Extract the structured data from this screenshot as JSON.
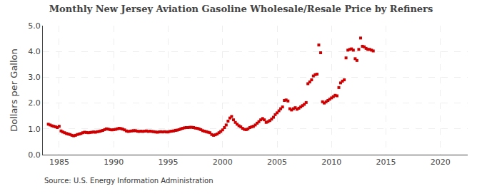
{
  "chart_data": {
    "type": "scatter",
    "title": "Monthly New Jersey Aviation Gasoline Wholesale/Resale Price by Refiners",
    "ylabel": "Dollars per Gallon",
    "annotations": [
      {
        "text": "Source: U.S. Energy Information Administration"
      }
    ],
    "color": "#cc0000",
    "marker": "square",
    "grid": true,
    "xlim": [
      1983.5,
      2022.5
    ],
    "ylim": [
      0.0,
      5.0
    ],
    "xticks": [
      1985,
      1990,
      1995,
      2000,
      2005,
      2010,
      2015,
      2020
    ],
    "yticks": [
      {
        "value": 0.0,
        "label": "0.0"
      },
      {
        "value": 1.0,
        "label": "1.0"
      },
      {
        "value": 2.0,
        "label": "2.0"
      },
      {
        "value": 3.0,
        "label": "3.0"
      },
      {
        "value": 4.0,
        "label": "4.0"
      },
      {
        "value": 5.0,
        "label": "5.0"
      }
    ],
    "x": [
      1984.0,
      1984.17,
      1984.33,
      1984.5,
      1984.67,
      1984.83,
      1985.0,
      1985.17,
      1985.33,
      1985.5,
      1985.67,
      1985.83,
      1986.0,
      1986.17,
      1986.33,
      1986.5,
      1986.67,
      1986.83,
      1987.0,
      1987.17,
      1987.33,
      1987.5,
      1987.67,
      1987.83,
      1988.0,
      1988.17,
      1988.33,
      1988.5,
      1988.67,
      1988.83,
      1989.0,
      1989.17,
      1989.33,
      1989.5,
      1989.67,
      1989.83,
      1990.0,
      1990.17,
      1990.33,
      1990.5,
      1990.67,
      1990.83,
      1991.0,
      1991.17,
      1991.33,
      1991.5,
      1991.67,
      1991.83,
      1992.0,
      1992.17,
      1992.33,
      1992.5,
      1992.67,
      1992.83,
      1993.0,
      1993.17,
      1993.33,
      1993.5,
      1993.67,
      1993.83,
      1994.0,
      1994.17,
      1994.33,
      1994.5,
      1994.67,
      1994.83,
      1995.0,
      1995.17,
      1995.33,
      1995.5,
      1995.67,
      1995.83,
      1996.0,
      1996.17,
      1996.33,
      1996.5,
      1996.67,
      1996.83,
      1997.0,
      1997.17,
      1997.33,
      1997.5,
      1997.67,
      1997.83,
      1998.0,
      1998.17,
      1998.33,
      1998.5,
      1998.67,
      1998.83,
      1999.0,
      1999.17,
      1999.33,
      1999.5,
      1999.67,
      1999.83,
      2000.0,
      2000.17,
      2000.33,
      2000.5,
      2000.67,
      2000.83,
      2001.0,
      2001.17,
      2001.33,
      2001.5,
      2001.67,
      2001.83,
      2002.0,
      2002.17,
      2002.33,
      2002.5,
      2002.67,
      2002.83,
      2003.0,
      2003.17,
      2003.33,
      2003.5,
      2003.67,
      2003.83,
      2004.0,
      2004.17,
      2004.33,
      2004.5,
      2004.67,
      2004.83,
      2005.0,
      2005.17,
      2005.33,
      2005.5,
      2005.67,
      2005.83,
      2006.0,
      2006.17,
      2006.33,
      2006.5,
      2006.67,
      2006.83,
      2007.0,
      2007.17,
      2007.33,
      2007.5,
      2007.67,
      2007.83,
      2008.0,
      2008.17,
      2008.33,
      2008.5,
      2008.67,
      2008.83,
      2009.0,
      2009.17,
      2009.33,
      2009.5,
      2009.67,
      2009.83,
      2010.0,
      2010.17,
      2010.33,
      2010.5,
      2010.67,
      2010.83,
      2011.0,
      2011.17,
      2011.33,
      2011.5,
      2011.67,
      2011.83,
      2012.0,
      2012.17,
      2012.33,
      2012.5,
      2012.67,
      2012.83,
      2013.0,
      2013.17,
      2013.33,
      2013.5,
      2013.67,
      2013.83
    ],
    "values": [
      1.18,
      1.15,
      1.12,
      1.1,
      1.08,
      1.05,
      1.1,
      0.92,
      0.88,
      0.85,
      0.82,
      0.8,
      0.78,
      0.75,
      0.73,
      0.75,
      0.78,
      0.8,
      0.82,
      0.85,
      0.87,
      0.86,
      0.85,
      0.86,
      0.87,
      0.88,
      0.87,
      0.89,
      0.9,
      0.92,
      0.94,
      0.97,
      1.0,
      0.99,
      0.97,
      0.96,
      0.97,
      0.98,
      1.0,
      1.02,
      1.01,
      0.99,
      0.96,
      0.92,
      0.9,
      0.91,
      0.92,
      0.93,
      0.93,
      0.91,
      0.9,
      0.91,
      0.9,
      0.91,
      0.92,
      0.9,
      0.91,
      0.9,
      0.89,
      0.88,
      0.87,
      0.88,
      0.89,
      0.88,
      0.89,
      0.88,
      0.88,
      0.9,
      0.91,
      0.92,
      0.94,
      0.95,
      0.97,
      1.0,
      1.02,
      1.04,
      1.05,
      1.05,
      1.06,
      1.06,
      1.05,
      1.03,
      1.02,
      1.0,
      0.97,
      0.93,
      0.91,
      0.89,
      0.87,
      0.85,
      0.78,
      0.75,
      0.77,
      0.8,
      0.85,
      0.9,
      0.96,
      1.05,
      1.15,
      1.3,
      1.42,
      1.48,
      1.35,
      1.25,
      1.18,
      1.12,
      1.08,
      1.02,
      0.98,
      0.97,
      1.0,
      1.05,
      1.08,
      1.1,
      1.15,
      1.22,
      1.28,
      1.35,
      1.4,
      1.35,
      1.25,
      1.28,
      1.32,
      1.38,
      1.45,
      1.55,
      1.62,
      1.7,
      1.78,
      1.85,
      2.1,
      2.12,
      2.08,
      1.78,
      1.73,
      1.78,
      1.82,
      1.76,
      1.8,
      1.85,
      1.9,
      1.95,
      2.02,
      2.75,
      2.82,
      2.9,
      3.05,
      3.1,
      3.12,
      4.25,
      3.95,
      2.05,
      2.0,
      2.05,
      2.1,
      2.15,
      2.2,
      2.25,
      2.3,
      2.28,
      2.6,
      2.78,
      2.85,
      2.9,
      3.75,
      4.05,
      4.08,
      4.1,
      4.05,
      3.72,
      3.65,
      4.08,
      4.52,
      4.2,
      4.18,
      4.12,
      4.08,
      4.08,
      4.05,
      4.02
    ]
  }
}
